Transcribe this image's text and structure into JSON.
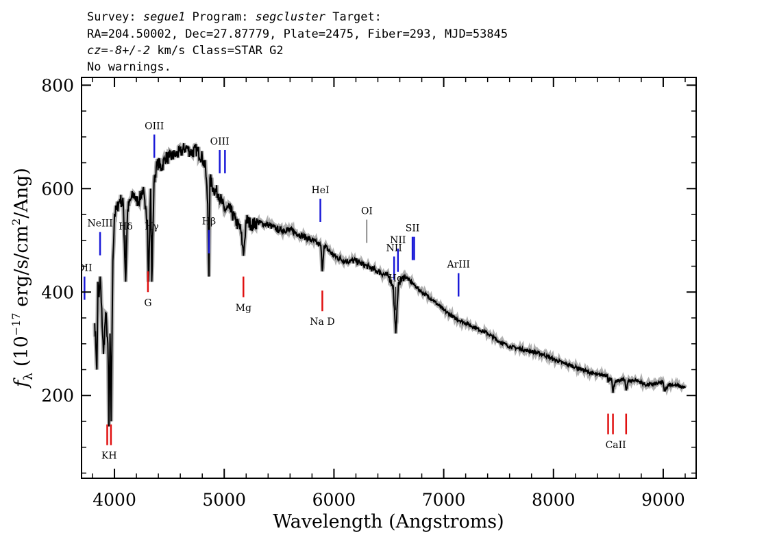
{
  "header": {
    "line1": {
      "survey_label": "Survey: ",
      "survey": "segue1",
      "program_label": " Program: ",
      "program": "segcluster",
      "target_label": " Target:"
    },
    "line2": "RA=204.50002, Dec=27.87779, Plate=2475, Fiber=293, MJD=53845",
    "line3": {
      "cz_label": "cz",
      "cz_eq": "=",
      "cz_value": "-8+/-2",
      "cz_unit": " km/s Class=STAR G2"
    },
    "line4": "No warnings."
  },
  "colors": {
    "emission": "#1a1ad8",
    "absorption": "#e01010",
    "spectrum": "#000000",
    "error": "#b0b0b0",
    "ticklines": "#000000"
  },
  "chart_data": {
    "type": "line",
    "xlabel": "Wavelength (Angstroms)",
    "ylabel": {
      "f": "f",
      "sub": "λ",
      "open": " (10",
      "exp1": "−17",
      "mid": " erg/s/cm",
      "exp2": "2",
      "close": "/Ang)"
    },
    "xlim": [
      3700,
      9300
    ],
    "ylim": [
      40,
      815
    ],
    "xticks": [
      4000,
      5000,
      6000,
      7000,
      8000,
      9000
    ],
    "yticks": [
      200,
      400,
      600,
      800
    ],
    "grid": false,
    "series": [
      {
        "x": [
          3820,
          3830,
          3840,
          3850,
          3860,
          3870,
          3880,
          3900,
          3920,
          3940,
          3950,
          3960,
          3970,
          3985,
          4000,
          4020,
          4050,
          4080,
          4102,
          4120,
          4150,
          4180,
          4200,
          4230,
          4260,
          4280,
          4300,
          4310,
          4330,
          4340,
          4360,
          4380,
          4400,
          4430,
          4460,
          4500,
          4550,
          4600,
          4650,
          4700,
          4750,
          4800,
          4830,
          4850,
          4861,
          4870,
          4900,
          4950,
          5000,
          5050,
          5100,
          5150,
          5167,
          5175,
          5183,
          5200,
          5250,
          5300,
          5400,
          5500,
          5600,
          5700,
          5800,
          5880,
          5893,
          5910,
          6000,
          6100,
          6200,
          6300,
          6400,
          6500,
          6540,
          6563,
          6590,
          6650,
          6700,
          6800,
          6900,
          7000,
          7100,
          7200,
          7300,
          7400,
          7500,
          7600,
          7700,
          7800,
          7900,
          8000,
          8100,
          8200,
          8300,
          8400,
          8490,
          8498,
          8510,
          8530,
          8542,
          8560,
          8600,
          8650,
          8662,
          8680,
          8750,
          8850,
          9000,
          9010,
          9050,
          9100,
          9150,
          9200
        ],
        "y": [
          340,
          300,
          250,
          420,
          390,
          430,
          380,
          280,
          360,
          300,
          140,
          320,
          150,
          460,
          550,
          560,
          580,
          570,
          420,
          560,
          580,
          590,
          575,
          580,
          600,
          560,
          540,
          420,
          600,
          420,
          610,
          640,
          650,
          640,
          660,
          660,
          665,
          670,
          680,
          670,
          675,
          660,
          640,
          570,
          430,
          620,
          600,
          590,
          560,
          560,
          540,
          520,
          490,
          470,
          490,
          540,
          530,
          535,
          530,
          520,
          520,
          510,
          500,
          490,
          440,
          490,
          470,
          460,
          460,
          450,
          440,
          430,
          410,
          320,
          420,
          430,
          420,
          400,
          385,
          365,
          350,
          340,
          330,
          320,
          305,
          295,
          290,
          285,
          280,
          270,
          262,
          255,
          247,
          240,
          240,
          225,
          235,
          230,
          205,
          225,
          230,
          230,
          210,
          228,
          230,
          220,
          225,
          208,
          222,
          220,
          218,
          215
        ],
        "error_halfwidth": 6
      }
    ],
    "emission_lines": [
      {
        "label": "OII",
        "wave": 3727
      },
      {
        "label": "NeIII",
        "wave": 3869
      },
      {
        "label": "Hδ",
        "wave": 4102,
        "thin": true
      },
      {
        "label": "Hγ",
        "wave": 4340,
        "thin": true
      },
      {
        "label": "OIII",
        "wave": 4363
      },
      {
        "label": "Hβ",
        "wave": 4861
      },
      {
        "label": "OIII",
        "wave": 4959,
        "wave2": 5007
      },
      {
        "label": "HeI",
        "wave": 5876
      },
      {
        "label": "OI",
        "wave": 6300,
        "thin": true
      },
      {
        "label": "NII",
        "wave": 6548
      },
      {
        "label": "Hα",
        "wave": 6563,
        "thin": true
      },
      {
        "label": "NII",
        "wave": 6583
      },
      {
        "label": "SII",
        "wave": 6716,
        "wave2": 6731
      },
      {
        "label": "ArIII",
        "wave": 7135
      }
    ],
    "absorption_lines": [
      {
        "label": "KH",
        "wave": 3934,
        "wave2": 3968
      },
      {
        "label": "G",
        "wave": 4305
      },
      {
        "label": "Mg",
        "wave": 5175
      },
      {
        "label": "Na D",
        "wave": 5894
      },
      {
        "label": "CaII",
        "wave": 8498,
        "wave2": 8542,
        "wave3": 8662
      }
    ]
  }
}
